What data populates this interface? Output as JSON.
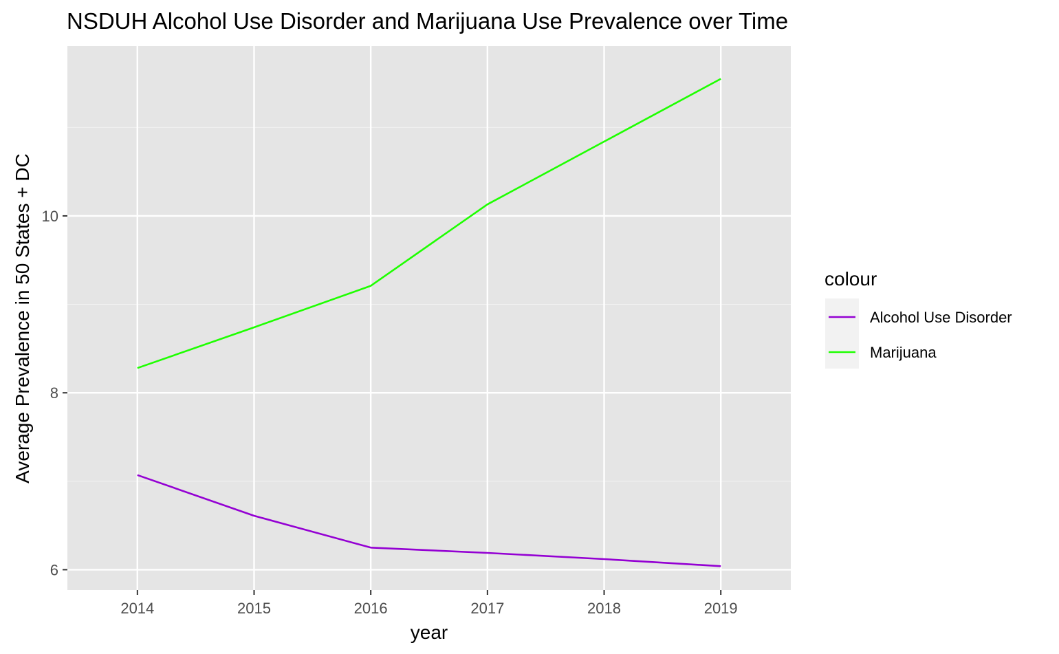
{
  "chart_data": {
    "type": "line",
    "title": "NSDUH Alcohol Use Disorder and Marijuana Use Prevalence over Time",
    "xlabel": "year",
    "ylabel": "Average Prevalence in 50 States + DC",
    "x": [
      2014,
      2015,
      2016,
      2017,
      2018,
      2019
    ],
    "x_ticks": [
      "2014",
      "2015",
      "2016",
      "2017",
      "2018",
      "2019"
    ],
    "y_ticks": [
      "6",
      "8",
      "10"
    ],
    "xlim": [
      2013.4,
      2019.6
    ],
    "ylim": [
      5.77,
      11.92
    ],
    "grid": true,
    "legend": {
      "title": "colour",
      "position": "right"
    },
    "series": [
      {
        "name": "Alcohol Use Disorder",
        "color": "#9400D3",
        "values": [
          7.07,
          6.61,
          6.25,
          6.19,
          6.12,
          6.04
        ]
      },
      {
        "name": "Marijuana",
        "color": "#1EFF00",
        "values": [
          8.28,
          8.74,
          9.21,
          10.13,
          10.84,
          11.55
        ]
      }
    ]
  }
}
